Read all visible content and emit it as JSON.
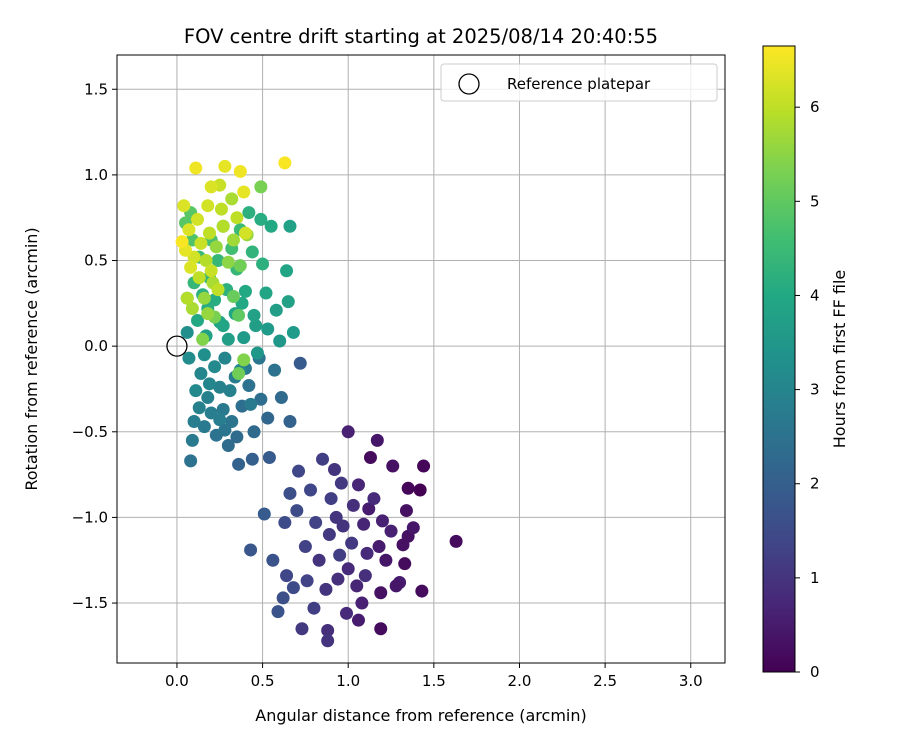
{
  "chart_data": {
    "type": "scatter",
    "title": "FOV centre drift starting at 2025/08/14 20:40:55",
    "xlabel": "Angular distance from reference (arcmin)",
    "ylabel": "Rotation from reference (arcmin)",
    "xlim": [
      -0.35,
      3.2
    ],
    "ylim": [
      -1.85,
      1.7
    ],
    "x_ticks": [
      "0.0",
      "0.5",
      "1.0",
      "1.5",
      "2.0",
      "2.5",
      "3.0"
    ],
    "y_ticks": [
      "1.5",
      "1.0",
      "0.5",
      "0.0",
      "−0.5",
      "−1.0",
      "−1.5"
    ],
    "grid": true,
    "legend_position": "top-right",
    "reference_marker": {
      "name": "Reference platepar",
      "x": 0.0,
      "y": 0.0,
      "marker": "open-circle"
    },
    "colorbar": {
      "label": "Hours from first FF file",
      "colormap": "viridis",
      "range": [
        0,
        6.65
      ],
      "ticks": [
        "0",
        "1",
        "2",
        "3",
        "4",
        "5",
        "6"
      ]
    },
    "points": [
      [
        1.63,
        -1.14,
        0.2
      ],
      [
        1.44,
        -0.7,
        0.1
      ],
      [
        1.42,
        -0.84,
        0.0
      ],
      [
        1.43,
        -1.43,
        0.2
      ],
      [
        1.35,
        -0.83,
        0.1
      ],
      [
        1.35,
        -1.11,
        0.3
      ],
      [
        1.38,
        -1.06,
        0.4
      ],
      [
        1.32,
        -1.16,
        0.3
      ],
      [
        1.33,
        -1.27,
        0.2
      ],
      [
        1.3,
        -1.38,
        0.5
      ],
      [
        1.26,
        -0.7,
        0.3
      ],
      [
        1.22,
        -1.25,
        0.4
      ],
      [
        1.2,
        -1.02,
        0.6
      ],
      [
        1.19,
        -1.44,
        0.3
      ],
      [
        1.19,
        -1.65,
        0.2
      ],
      [
        1.17,
        -0.55,
        0.4
      ],
      [
        1.13,
        -0.65,
        0.2
      ],
      [
        1.12,
        -0.95,
        0.5
      ],
      [
        1.11,
        -1.21,
        0.8
      ],
      [
        1.1,
        -1.34,
        0.9
      ],
      [
        1.08,
        -1.5,
        0.6
      ],
      [
        1.06,
        -0.81,
        0.7
      ],
      [
        1.05,
        -1.4,
        0.7
      ],
      [
        1.03,
        -0.93,
        0.9
      ],
      [
        1.02,
        -1.15,
        1.1
      ],
      [
        1.0,
        -0.5,
        0.6
      ],
      [
        0.99,
        -1.56,
        0.8
      ],
      [
        0.97,
        -1.05,
        1.0
      ],
      [
        0.95,
        -1.22,
        1.2
      ],
      [
        0.94,
        -1.36,
        0.9
      ],
      [
        0.92,
        -0.72,
        1.0
      ],
      [
        0.9,
        -0.89,
        1.2
      ],
      [
        0.89,
        -1.1,
        1.1
      ],
      [
        0.88,
        -1.66,
        0.9
      ],
      [
        0.87,
        -1.42,
        1.0
      ],
      [
        0.85,
        -0.66,
        1.2
      ],
      [
        0.83,
        -1.25,
        1.0
      ],
      [
        0.81,
        -1.03,
        1.3
      ],
      [
        0.8,
        -1.53,
        1.2
      ],
      [
        0.78,
        -0.84,
        1.4
      ],
      [
        0.76,
        -1.37,
        1.3
      ],
      [
        0.75,
        -1.17,
        1.3
      ],
      [
        0.73,
        -1.65,
        1.1
      ],
      [
        0.71,
        -0.73,
        1.4
      ],
      [
        0.7,
        -0.96,
        1.5
      ],
      [
        0.68,
        -1.41,
        1.5
      ],
      [
        0.66,
        -0.86,
        1.6
      ],
      [
        0.64,
        -1.34,
        1.4
      ],
      [
        0.63,
        -1.03,
        1.5
      ],
      [
        0.62,
        -1.47,
        1.6
      ],
      [
        0.59,
        -1.55,
        1.7
      ],
      [
        0.56,
        -1.25,
        1.7
      ],
      [
        0.51,
        -0.98,
        1.9
      ],
      [
        0.43,
        -1.19,
        1.8
      ],
      [
        0.88,
        -1.72,
        1.0
      ],
      [
        1.18,
        -1.17,
        0.5
      ],
      [
        1.25,
        -1.08,
        0.6
      ],
      [
        1.09,
        -1.04,
        0.7
      ],
      [
        1.15,
        -0.89,
        0.8
      ],
      [
        1.0,
        -1.3,
        0.8
      ],
      [
        0.96,
        -0.8,
        1.1
      ],
      [
        1.28,
        -1.4,
        0.4
      ],
      [
        1.06,
        -1.6,
        0.5
      ],
      [
        1.34,
        -0.96,
        0.3
      ],
      [
        0.93,
        -1.0,
        1.0
      ],
      [
        0.72,
        -0.1,
        1.9
      ],
      [
        0.66,
        -0.44,
        2.1
      ],
      [
        0.61,
        -0.3,
        2.3
      ],
      [
        0.57,
        -0.14,
        2.5
      ],
      [
        0.54,
        -0.65,
        1.9
      ],
      [
        0.53,
        -0.42,
        2.2
      ],
      [
        0.49,
        -0.31,
        2.4
      ],
      [
        0.48,
        -0.07,
        2.6
      ],
      [
        0.45,
        -0.5,
        2.3
      ],
      [
        0.44,
        -0.66,
        2.0
      ],
      [
        0.42,
        -0.23,
        2.5
      ],
      [
        0.4,
        -0.13,
        2.7
      ],
      [
        0.38,
        -0.35,
        2.4
      ],
      [
        0.36,
        -0.69,
        2.1
      ],
      [
        0.35,
        -0.53,
        2.3
      ],
      [
        0.34,
        -0.18,
        2.8
      ],
      [
        0.32,
        -0.44,
        2.6
      ],
      [
        0.3,
        -0.58,
        2.3
      ],
      [
        0.28,
        -0.07,
        3.0
      ],
      [
        0.27,
        -0.37,
        2.7
      ],
      [
        0.25,
        -0.24,
        2.9
      ],
      [
        0.23,
        -0.52,
        2.5
      ],
      [
        0.22,
        -0.12,
        3.1
      ],
      [
        0.2,
        -0.39,
        2.8
      ],
      [
        0.18,
        -0.3,
        2.9
      ],
      [
        0.16,
        -0.47,
        2.7
      ],
      [
        0.14,
        -0.16,
        3.0
      ],
      [
        0.13,
        -0.36,
        2.9
      ],
      [
        0.11,
        -0.26,
        3.1
      ],
      [
        0.1,
        -0.44,
        2.8
      ],
      [
        0.09,
        -0.55,
        2.7
      ],
      [
        0.08,
        -0.67,
        2.5
      ],
      [
        0.07,
        -0.07,
        3.2
      ],
      [
        0.06,
        0.08,
        3.3
      ],
      [
        0.16,
        -0.05,
        3.3
      ],
      [
        0.25,
        -0.43,
        2.8
      ],
      [
        0.31,
        -0.26,
        2.9
      ],
      [
        0.37,
        -0.14,
        3.0
      ],
      [
        0.43,
        -0.34,
        2.7
      ],
      [
        0.28,
        -0.49,
        2.6
      ],
      [
        0.19,
        -0.22,
        3.0
      ],
      [
        0.68,
        0.08,
        3.6
      ],
      [
        0.65,
        0.26,
        3.8
      ],
      [
        0.64,
        0.44,
        3.9
      ],
      [
        0.66,
        0.7,
        3.8
      ],
      [
        0.6,
        0.03,
        3.5
      ],
      [
        0.58,
        0.21,
        3.7
      ],
      [
        0.55,
        0.7,
        4.0
      ],
      [
        0.52,
        0.31,
        3.9
      ],
      [
        0.5,
        0.48,
        4.2
      ],
      [
        0.49,
        0.74,
        4.1
      ],
      [
        0.47,
        -0.04,
        3.5
      ],
      [
        0.46,
        0.12,
        3.7
      ],
      [
        0.44,
        0.55,
        4.3
      ],
      [
        0.42,
        0.78,
        4.2
      ],
      [
        0.4,
        0.32,
        4.0
      ],
      [
        0.39,
        0.05,
        3.6
      ],
      [
        0.37,
        0.68,
        4.5
      ],
      [
        0.35,
        0.45,
        4.4
      ],
      [
        0.34,
        0.19,
        3.9
      ],
      [
        0.32,
        0.57,
        4.6
      ],
      [
        0.3,
        0.04,
        3.7
      ],
      [
        0.29,
        0.33,
        4.2
      ],
      [
        0.27,
        0.7,
        4.6
      ],
      [
        0.25,
        0.14,
        3.9
      ],
      [
        0.24,
        0.5,
        4.4
      ],
      [
        0.22,
        0.27,
        4.1
      ],
      [
        0.2,
        0.62,
        4.7
      ],
      [
        0.19,
        0.4,
        4.3
      ],
      [
        0.17,
        0.06,
        3.8
      ],
      [
        0.15,
        0.3,
        4.2
      ],
      [
        0.13,
        0.52,
        4.5
      ],
      [
        0.12,
        0.15,
        4.0
      ],
      [
        0.1,
        0.37,
        4.4
      ],
      [
        0.09,
        0.62,
        4.8
      ],
      [
        0.08,
        0.78,
        4.9
      ],
      [
        0.06,
        0.28,
        4.3
      ],
      [
        0.05,
        0.72,
        4.9
      ],
      [
        0.27,
        0.12,
        3.9
      ],
      [
        0.38,
        0.25,
        4.0
      ],
      [
        0.45,
        0.18,
        3.8
      ],
      [
        0.53,
        0.1,
        3.6
      ],
      [
        0.18,
        0.22,
        4.1
      ],
      [
        0.49,
        0.93,
        5.3
      ],
      [
        0.41,
        0.65,
        5.6
      ],
      [
        0.36,
        0.18,
        5.0
      ],
      [
        0.36,
        -0.16,
        5.2
      ],
      [
        0.32,
        0.86,
        5.8
      ],
      [
        0.3,
        0.49,
        5.5
      ],
      [
        0.28,
        1.05,
        6.4
      ],
      [
        0.26,
        0.8,
        6.0
      ],
      [
        0.25,
        0.94,
        6.1
      ],
      [
        0.23,
        0.58,
        5.6
      ],
      [
        0.22,
        0.17,
        5.3
      ],
      [
        0.21,
        0.37,
        5.8
      ],
      [
        0.2,
        0.93,
        6.3
      ],
      [
        0.19,
        0.66,
        6.0
      ],
      [
        0.18,
        0.82,
        6.2
      ],
      [
        0.17,
        0.5,
        5.9
      ],
      [
        0.16,
        0.28,
        5.6
      ],
      [
        0.15,
        0.04,
        5.4
      ],
      [
        0.14,
        0.6,
        6.1
      ],
      [
        0.13,
        0.4,
        6.0
      ],
      [
        0.12,
        0.74,
        6.2
      ],
      [
        0.11,
        1.04,
        6.5
      ],
      [
        0.1,
        0.52,
        6.2
      ],
      [
        0.09,
        0.22,
        5.8
      ],
      [
        0.08,
        0.46,
        6.3
      ],
      [
        0.07,
        0.68,
        6.3
      ],
      [
        0.06,
        0.28,
        5.9
      ],
      [
        0.05,
        0.56,
        6.4
      ],
      [
        0.04,
        0.82,
        6.3
      ],
      [
        0.03,
        0.61,
        6.6
      ],
      [
        0.37,
        1.02,
        6.5
      ],
      [
        0.39,
        0.9,
        6.4
      ],
      [
        0.35,
        0.75,
        6.0
      ],
      [
        0.33,
        0.62,
        5.7
      ],
      [
        0.27,
        0.7,
        5.9
      ],
      [
        0.63,
        1.07,
        6.6
      ],
      [
        0.33,
        0.29,
        5.1
      ],
      [
        0.39,
        -0.08,
        5.4
      ],
      [
        0.4,
        0.66,
        6.2
      ],
      [
        0.37,
        0.47,
        5.2
      ],
      [
        0.24,
        0.33,
        6.0
      ],
      [
        0.2,
        0.44,
        6.1
      ],
      [
        0.18,
        0.19,
        5.6
      ]
    ]
  }
}
